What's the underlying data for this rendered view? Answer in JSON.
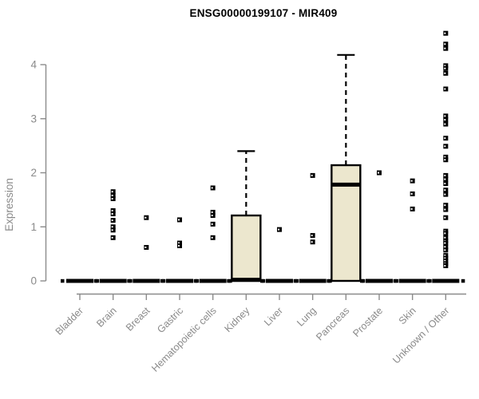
{
  "chart_data": {
    "type": "boxplot",
    "title": "ENSG00000199107 - MIR409",
    "ylabel": "Expression",
    "xlabel": "",
    "ylim": [
      0,
      4.7
    ],
    "yticks": [
      0,
      1,
      2,
      3,
      4
    ],
    "grid": false,
    "legend": "none",
    "categories": [
      "Bladder",
      "Brain",
      "Breast",
      "Gastric",
      "Hematopoietic cells",
      "Kidney",
      "Liver",
      "Lung",
      "Pancreas",
      "Prostate",
      "Skin",
      "Unknown / Other"
    ],
    "boxes": [
      {
        "category": "Bladder",
        "q1": 0,
        "median": 0,
        "q3": 0,
        "whisker_low": 0,
        "whisker_high": 0,
        "points": []
      },
      {
        "category": "Brain",
        "q1": 0,
        "median": 0,
        "q3": 0,
        "whisker_low": 0,
        "whisker_high": 0,
        "points": [
          1.65,
          1.58,
          1.52,
          1.3,
          1.24,
          1.12,
          1.0,
          0.94,
          0.8
        ]
      },
      {
        "category": "Breast",
        "q1": 0,
        "median": 0,
        "q3": 0,
        "whisker_low": 0,
        "whisker_high": 0,
        "points": [
          1.17,
          0.62
        ]
      },
      {
        "category": "Gastric",
        "q1": 0,
        "median": 0,
        "q3": 0,
        "whisker_low": 0,
        "whisker_high": 0,
        "points": [
          1.13,
          0.7,
          0.65
        ]
      },
      {
        "category": "Hematopoietic cells",
        "q1": 0,
        "median": 0,
        "q3": 0,
        "whisker_low": 0,
        "whisker_high": 0,
        "points": [
          1.72,
          1.27,
          1.21,
          1.05,
          0.8
        ]
      },
      {
        "category": "Kidney",
        "q1": 0,
        "median": 0.02,
        "q3": 1.21,
        "whisker_low": 0,
        "whisker_high": 2.4,
        "points": []
      },
      {
        "category": "Liver",
        "q1": 0,
        "median": 0,
        "q3": 0,
        "whisker_low": 0,
        "whisker_high": 0,
        "points": [
          0.95
        ]
      },
      {
        "category": "Lung",
        "q1": 0,
        "median": 0,
        "q3": 0,
        "whisker_low": 0,
        "whisker_high": 0,
        "points": [
          1.95,
          0.84,
          0.72
        ]
      },
      {
        "category": "Pancreas",
        "q1": 0,
        "median": 1.78,
        "q3": 2.14,
        "whisker_low": 0,
        "whisker_high": 4.18,
        "points": []
      },
      {
        "category": "Prostate",
        "q1": 0,
        "median": 0,
        "q3": 0,
        "whisker_low": 0,
        "whisker_high": 0,
        "points": [
          2.0
        ]
      },
      {
        "category": "Skin",
        "q1": 0,
        "median": 0,
        "q3": 0,
        "whisker_low": 0,
        "whisker_high": 0,
        "points": [
          1.85,
          1.61,
          1.33
        ]
      },
      {
        "category": "Unknown / Other",
        "q1": 0,
        "median": 0,
        "q3": 0,
        "whisker_low": 0,
        "whisker_high": 0,
        "points": [
          4.58,
          4.38,
          4.3,
          3.98,
          3.93,
          3.84,
          3.55,
          3.05,
          2.98,
          2.9,
          2.64,
          2.49,
          2.29,
          2.24,
          1.95,
          1.88,
          1.8,
          1.68,
          1.6,
          1.4,
          1.32,
          1.17,
          0.92,
          0.88,
          0.8,
          0.74,
          0.7,
          0.63,
          0.57,
          0.47,
          0.42,
          0.37,
          0.32,
          0.28
        ]
      }
    ],
    "colors": {
      "box_fill": "#ece7ce",
      "box_stroke": "#000000",
      "median": "#000000",
      "whisker": "#000000",
      "point": "#000000",
      "axis": "#8b8b8b",
      "tick_label": "#8a8a8a",
      "title": "#000000"
    }
  }
}
